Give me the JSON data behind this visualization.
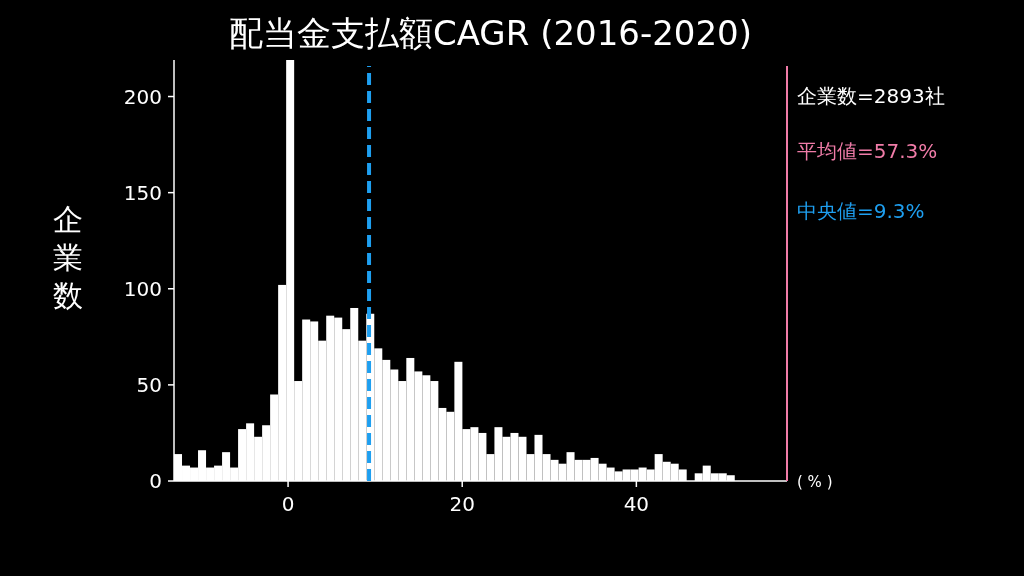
{
  "chart_data": {
    "type": "histogram",
    "title": "配当金支払額CAGR (2016-2020)",
    "ylabel": "企業数",
    "xlabel": "( % )",
    "color": "#ffffff",
    "bins": [
      -13.1,
      -12.18,
      -11.26,
      -10.34,
      -9.42,
      -8.5,
      -7.58,
      -6.66,
      -5.74,
      -4.82,
      -3.9,
      -2.98,
      -2.06,
      -1.14,
      -0.22,
      0.7,
      1.62,
      2.54,
      3.46,
      4.38,
      5.3,
      6.22,
      7.14,
      8.06,
      8.98,
      9.9,
      10.82,
      11.74,
      12.66,
      13.58,
      14.5,
      15.42,
      16.34,
      17.26,
      18.18,
      19.1,
      20.02,
      20.94,
      21.86,
      22.78,
      23.7,
      24.62,
      25.54,
      26.46,
      27.38,
      28.3,
      29.22,
      30.14,
      31.06,
      31.98,
      32.9,
      33.82,
      34.74,
      35.66,
      36.58,
      37.5,
      38.42,
      39.34,
      40.26,
      41.18,
      42.1,
      43.02,
      43.94,
      44.86,
      45.78,
      46.7,
      47.62,
      48.54,
      49.46,
      50.38,
      51.3
    ],
    "values": [
      14,
      8,
      7,
      16,
      7,
      8,
      15,
      7,
      27,
      30,
      23,
      29,
      45,
      102,
      219,
      52,
      84,
      83,
      73,
      86,
      85,
      79,
      90,
      73,
      87,
      69,
      63,
      58,
      52,
      64,
      57,
      55,
      52,
      38,
      36,
      62,
      27,
      28,
      25,
      14,
      28,
      23,
      25,
      23,
      14,
      24,
      14,
      11,
      9,
      15,
      11,
      11,
      12,
      9,
      7,
      5,
      6,
      6,
      7,
      6,
      14,
      10,
      9,
      6,
      0,
      4,
      8,
      4,
      4,
      3
    ],
    "xlim": [
      -13.1,
      57.3
    ],
    "ylim": [
      0,
      219
    ],
    "xticks": [
      0,
      20,
      40
    ],
    "yticks": [
      0,
      50,
      100,
      150,
      200
    ],
    "ref_lines": [
      {
        "axis": "x",
        "value": 57.3,
        "label": "平均値=57.3%",
        "color": "#f07ca8",
        "line_style": "solid"
      },
      {
        "axis": "x",
        "value": 9.3,
        "label": "中央値=9.3%",
        "color": "#1e9ff0",
        "line_style": "dashed"
      }
    ],
    "annotations": [
      "企業数=2893社"
    ]
  }
}
